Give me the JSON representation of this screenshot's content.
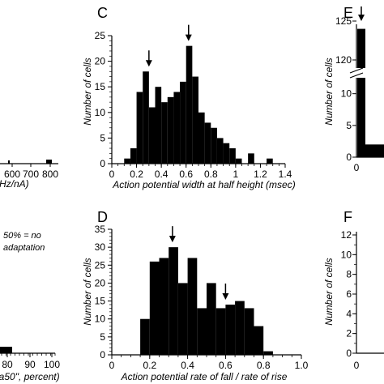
{
  "chart_data": [
    {
      "panel": "C",
      "type": "bar",
      "xlabel": "Action potential width at half height (msec)",
      "ylabel": "Number of cells",
      "xlim": [
        0,
        1.4
      ],
      "ylim": [
        0,
        25
      ],
      "x_ticks": [
        "0",
        "0.2",
        "0.4",
        "0.6",
        "0.8",
        "1",
        "1.2",
        "1.4"
      ],
      "y_ticks": [
        "0",
        "5",
        "10",
        "15",
        "20",
        "25"
      ],
      "bin_width": 0.05,
      "bin_starts": [
        0.1,
        0.15,
        0.2,
        0.25,
        0.3,
        0.35,
        0.4,
        0.45,
        0.5,
        0.55,
        0.6,
        0.65,
        0.7,
        0.75,
        0.8,
        0.85,
        0.9,
        0.95,
        1.0,
        1.1,
        1.25
      ],
      "values": [
        1,
        3,
        14,
        18,
        11,
        15,
        12,
        13,
        14,
        16,
        23,
        17,
        10,
        8,
        7,
        5,
        4,
        3,
        1,
        2,
        1
      ],
      "arrows_at": [
        0.3,
        0.62
      ]
    },
    {
      "panel": "D",
      "type": "bar",
      "xlabel": "Action potential rate of fall / rate of rise",
      "ylabel": "Number of cells",
      "xlim": [
        0,
        1.0
      ],
      "ylim": [
        0,
        35
      ],
      "x_ticks": [
        "0",
        "0.2",
        "0.4",
        "0.6",
        "0.8",
        "1.0"
      ],
      "y_ticks": [
        "0",
        "5",
        "10",
        "15",
        "20",
        "25",
        "30",
        "35"
      ],
      "bin_width": 0.05,
      "bin_starts": [
        0.15,
        0.2,
        0.25,
        0.3,
        0.35,
        0.4,
        0.45,
        0.5,
        0.55,
        0.6,
        0.65,
        0.7,
        0.75,
        0.8
      ],
      "values": [
        10,
        26,
        27,
        30,
        20,
        27,
        13,
        20,
        13,
        14,
        15,
        13,
        8,
        1
      ],
      "arrows_at": [
        0.32,
        0.6
      ]
    },
    {
      "panel": "E",
      "type": "bar",
      "ylabel": "Number of cells",
      "x_ticks": [
        "0"
      ],
      "y_ticks_top": [
        "120",
        "125"
      ],
      "y_ticks_bottom": [
        "0",
        "5",
        "10"
      ],
      "values_top": [
        124
      ],
      "values_bottom": [
        2
      ]
    },
    {
      "panel": "F",
      "type": "bar",
      "ylabel": "Number of cells",
      "x_ticks": [
        "0"
      ],
      "y_ticks": [
        "0",
        "2",
        "4",
        "6",
        "8",
        "10",
        "12"
      ],
      "ylim": [
        0,
        12
      ]
    },
    {
      "panel": "left-top",
      "type": "bar",
      "x_ticks": [
        "600",
        "700",
        "800"
      ],
      "xlabel_fragment": "Hz/nA)"
    },
    {
      "panel": "left-bottom",
      "type": "bar",
      "x_ticks": [
        "80",
        "90",
        "100"
      ],
      "xlabel_fragment": "la50\", percent)",
      "annotation": [
        "50% = no",
        "adaptation"
      ]
    }
  ]
}
